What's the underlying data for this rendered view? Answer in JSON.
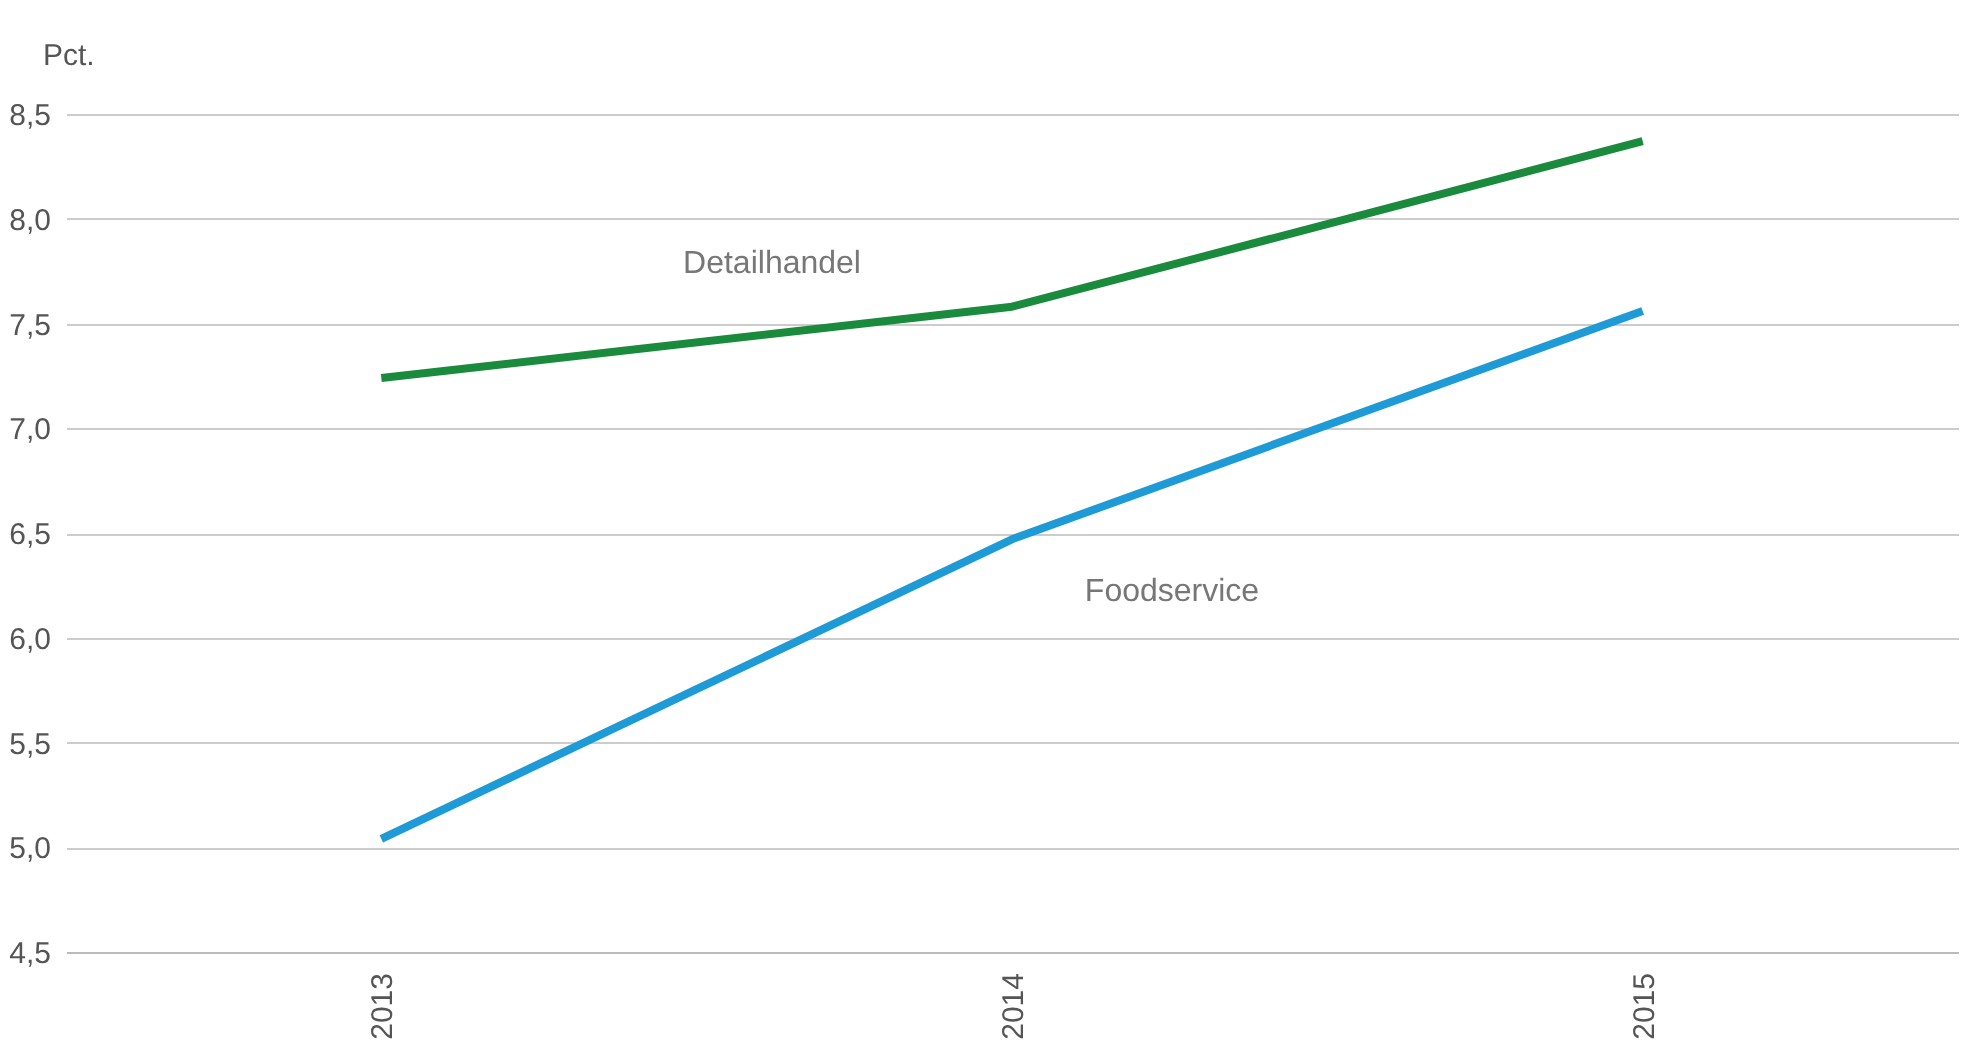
{
  "chart_data": {
    "type": "line",
    "ylabel": "Pct.",
    "categories": [
      "2013",
      "2014",
      "2015"
    ],
    "series": [
      {
        "name": "Detailhandel",
        "color": "#1a8a3c",
        "values": [
          7.24,
          7.58,
          8.37
        ]
      },
      {
        "name": "Foodservice",
        "color": "#1e9ad6",
        "values": [
          5.04,
          6.47,
          7.56
        ]
      }
    ],
    "ylim": [
      4.5,
      8.5
    ],
    "yticks": [
      {
        "value": 4.5,
        "label": "4,5"
      },
      {
        "value": 5,
        "label": "5,0"
      },
      {
        "value": 5.5,
        "label": "5,5"
      },
      {
        "value": 6,
        "label": "6,0"
      },
      {
        "value": 6.5,
        "label": "6,5"
      },
      {
        "value": 7,
        "label": "7,0"
      },
      {
        "value": 7.5,
        "label": "7,5"
      },
      {
        "value": 8,
        "label": "8,0"
      },
      {
        "value": 8.5,
        "label": "8,5"
      }
    ],
    "grid": "y",
    "marker": "none",
    "line_style": "solid"
  }
}
